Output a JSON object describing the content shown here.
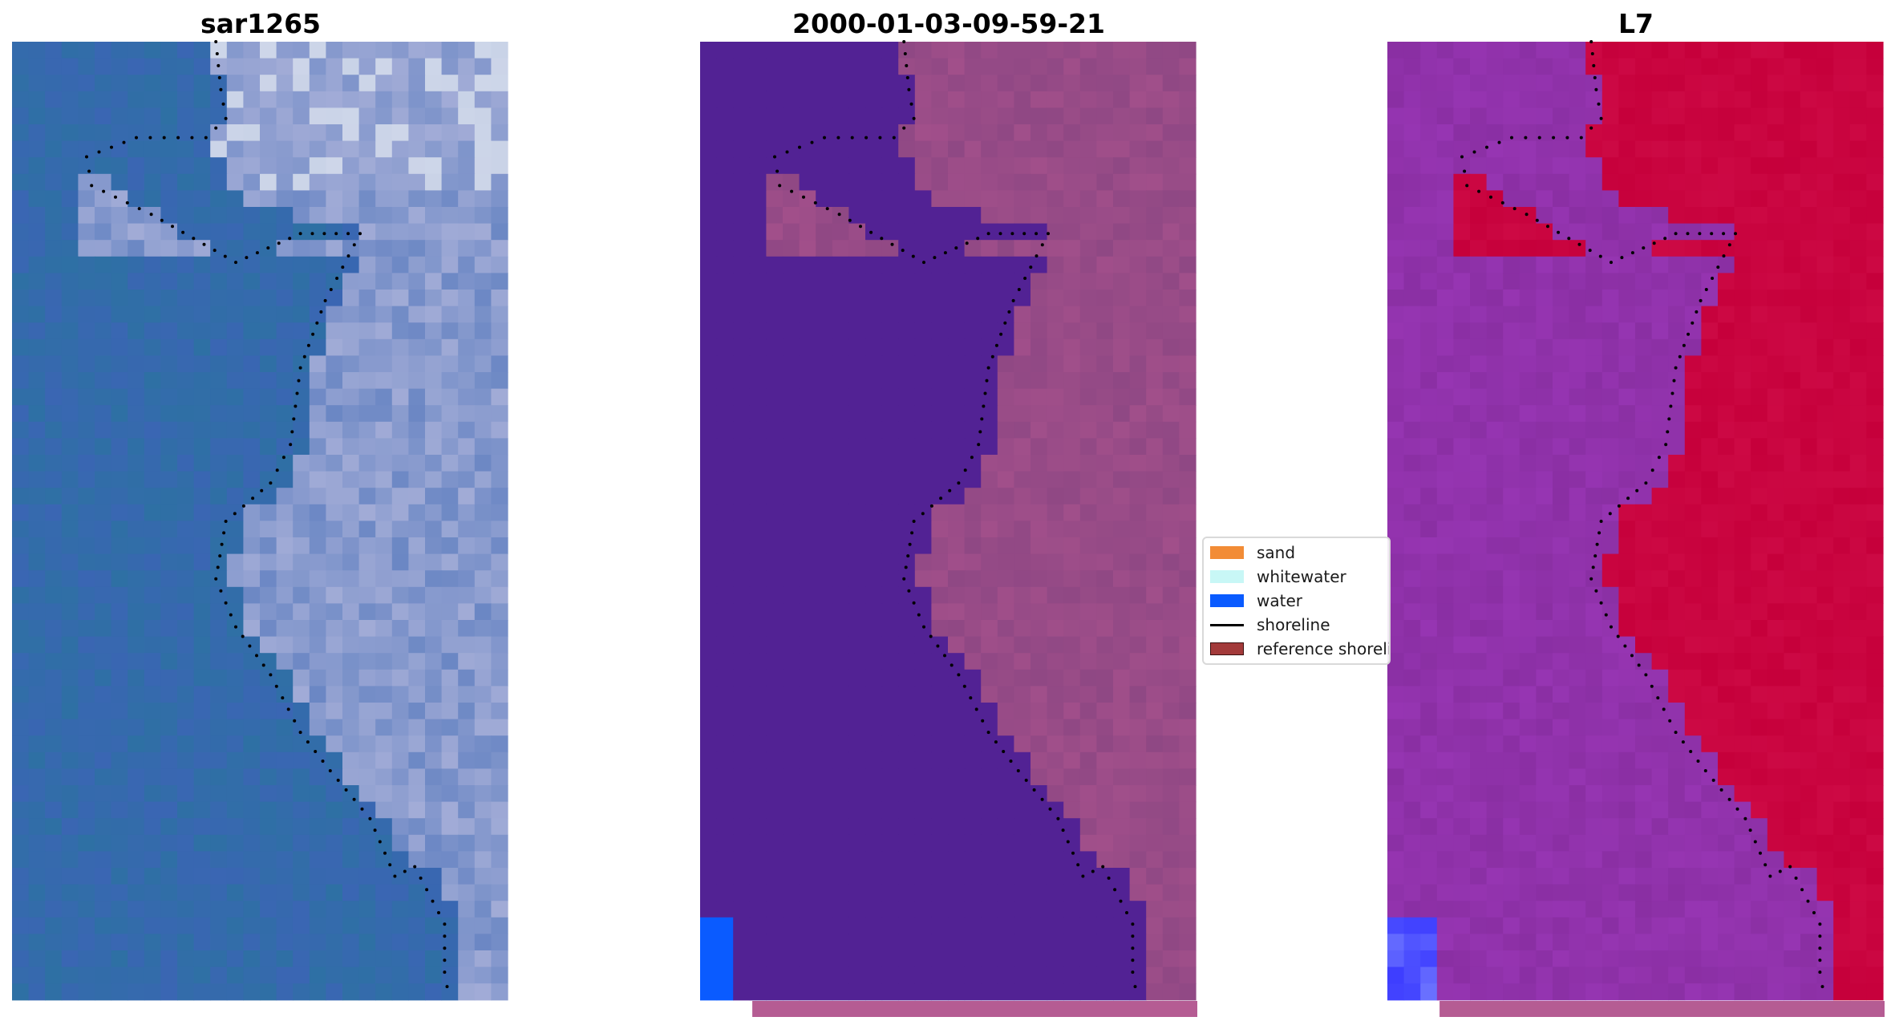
{
  "panels": [
    {
      "title": "sar1265",
      "kind": "rgb",
      "alt": "sar1265 RGB satellite image"
    },
    {
      "title": "2000-01-03-09-59-21",
      "kind": "classified",
      "alt": "classified image"
    },
    {
      "title": "L7",
      "kind": "index",
      "alt": "L7 water index image"
    }
  ],
  "legend": {
    "items": [
      {
        "label": "sand",
        "type": "patch",
        "color": "#f28c36"
      },
      {
        "label": "whitewater",
        "type": "patch",
        "color": "#c8f7f6"
      },
      {
        "label": "water",
        "type": "patch",
        "color": "#0a5bff"
      },
      {
        "label": "shoreline",
        "type": "line",
        "color": "#000000"
      },
      {
        "label": "reference shoreline",
        "type": "patch",
        "color": "#a33a3a"
      }
    ]
  },
  "colors": {
    "rgb_water": "#3a66b3",
    "rgb_land": "#b4b8dd",
    "rgb_bright": "#f1f3f6",
    "class_water": "#522294",
    "class_land": "#a14f8a",
    "class_water_pixel": "#0a5bff",
    "index_water": "#8a2fa3",
    "index_land": "#c6003b",
    "index_dark": "#5a00b6",
    "index_blue": "#6b72ff",
    "strip_pink": "#b55c93",
    "shoreline_dots": "#000000"
  }
}
